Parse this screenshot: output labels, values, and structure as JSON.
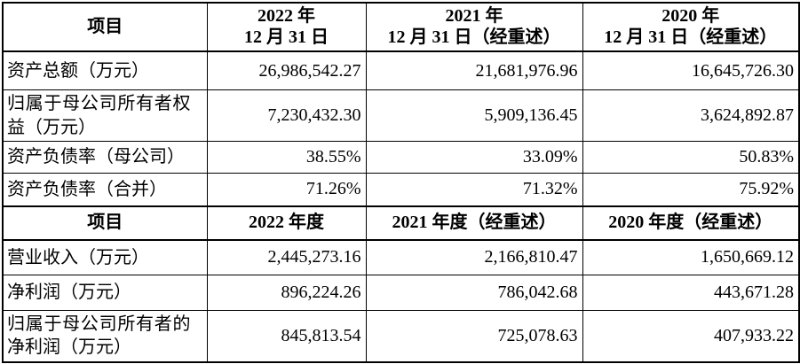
{
  "colors": {
    "background": "#ffffff",
    "border": "#000000",
    "text": "#000000"
  },
  "section1": {
    "headers": [
      "项目",
      "2022 年\n12 月 31 日",
      "2021 年\n12 月 31 日（经重述）",
      "2020 年\n12 月 31 日（经重述）"
    ],
    "rows": [
      {
        "label": "资产总额（万元）",
        "values": [
          "26,986,542.27",
          "21,681,976.96",
          "16,645,726.30"
        ]
      },
      {
        "label": "归属于母公司所有者权益（万元）",
        "values": [
          "7,230,432.30",
          "5,909,136.45",
          "3,624,892.87"
        ]
      },
      {
        "label": "资产负债率（母公司）",
        "values": [
          "38.55%",
          "33.09%",
          "50.83%"
        ]
      },
      {
        "label": "资产负债率（合并）",
        "values": [
          "71.26%",
          "71.32%",
          "75.92%"
        ]
      }
    ]
  },
  "section2": {
    "headers": [
      "项目",
      "2022 年度",
      "2021 年度（经重述）",
      "2020 年度（经重述）"
    ],
    "rows": [
      {
        "label": "营业收入（万元）",
        "values": [
          "2,445,273.16",
          "2,166,810.47",
          "1,650,669.12"
        ]
      },
      {
        "label": "净利润（万元）",
        "values": [
          "896,224.26",
          "786,042.68",
          "443,671.28"
        ]
      },
      {
        "label": "归属于母公司所有者的净利润（万元）",
        "values": [
          "845,813.54",
          "725,078.63",
          "407,933.22"
        ]
      }
    ]
  }
}
